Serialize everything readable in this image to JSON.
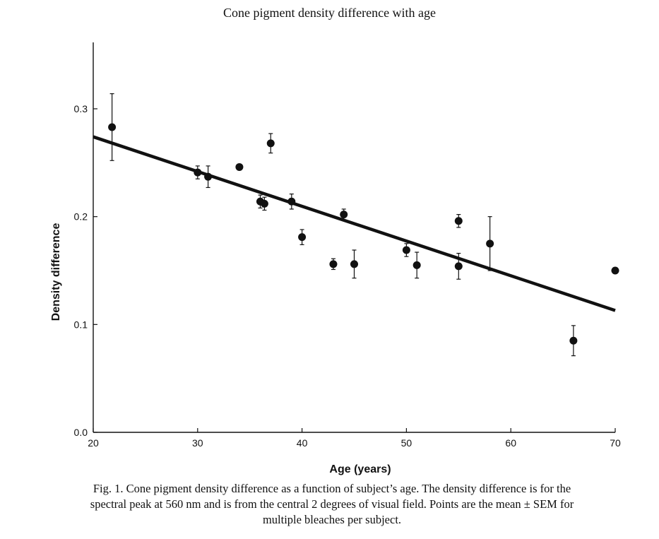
{
  "chart_data": {
    "type": "scatter",
    "title": "Cone pigment density difference with age",
    "xlabel": "Age (years)",
    "ylabel": "Density difference",
    "xlim": [
      20,
      70
    ],
    "ylim": [
      0.0,
      0.35
    ],
    "x_ticks": [
      20,
      30,
      40,
      50,
      60,
      70
    ],
    "x_tick_labels": [
      "20",
      "30",
      "40",
      "50",
      "60",
      "70"
    ],
    "y_ticks": [
      0.0,
      0.1,
      0.2,
      0.3
    ],
    "y_tick_labels": [
      "0.0",
      "0.1",
      "0.2",
      "0.3"
    ],
    "grid": false,
    "points": [
      {
        "x": 21.8,
        "y": 0.283,
        "err": 0.031
      },
      {
        "x": 30.0,
        "y": 0.241,
        "err": 0.006
      },
      {
        "x": 31.0,
        "y": 0.237,
        "err": 0.01
      },
      {
        "x": 34.0,
        "y": 0.246,
        "err": 0
      },
      {
        "x": 36.0,
        "y": 0.214,
        "err": 0.006
      },
      {
        "x": 36.4,
        "y": 0.212,
        "err": 0.006
      },
      {
        "x": 37.0,
        "y": 0.268,
        "err": 0.009
      },
      {
        "x": 39.0,
        "y": 0.214,
        "err": 0.007
      },
      {
        "x": 40.0,
        "y": 0.181,
        "err": 0.007
      },
      {
        "x": 43.0,
        "y": 0.156,
        "err": 0.005
      },
      {
        "x": 44.0,
        "y": 0.202,
        "err": 0.005
      },
      {
        "x": 45.0,
        "y": 0.156,
        "err": 0.013
      },
      {
        "x": 50.0,
        "y": 0.169,
        "err": 0.006
      },
      {
        "x": 51.0,
        "y": 0.155,
        "err": 0.012
      },
      {
        "x": 55.0,
        "y": 0.196,
        "err": 0.006
      },
      {
        "x": 55.0,
        "y": 0.154,
        "err": 0.012
      },
      {
        "x": 58.0,
        "y": 0.175,
        "err": 0.025
      },
      {
        "x": 66.0,
        "y": 0.085,
        "err": 0.014
      },
      {
        "x": 70.0,
        "y": 0.15,
        "err": 0
      }
    ],
    "fit_line": {
      "x": [
        20,
        70
      ],
      "y": [
        0.274,
        0.113
      ]
    }
  },
  "caption": {
    "line1": "Fig. 1. Cone pigment density difference as a function of subject’s age. The density difference is for the",
    "line2": "spectral peak at 560 nm and is from the central 2 degrees of visual field. Points are the mean ± SEM for",
    "line3": "multiple bleaches per subject."
  },
  "colors": {
    "ink": "#111111"
  }
}
